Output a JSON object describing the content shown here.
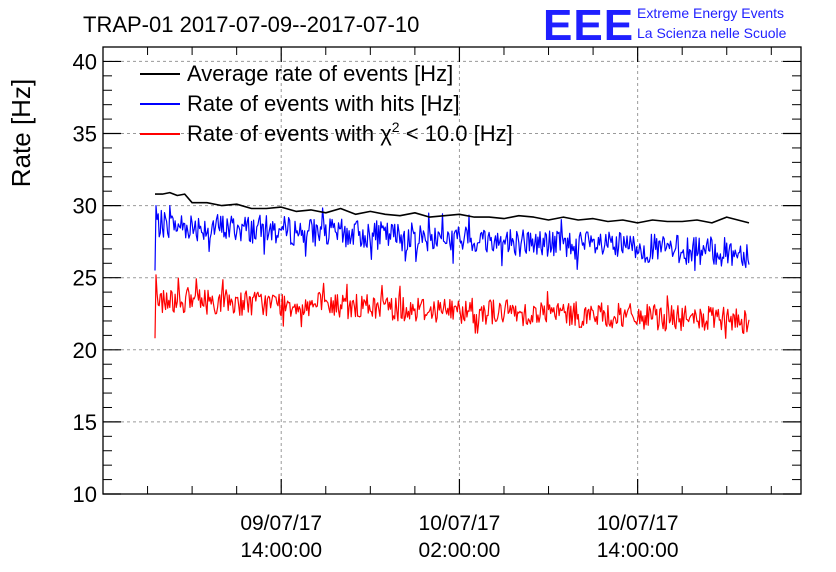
{
  "chart_data": {
    "type": "line",
    "title": "TRAP-01 2017-07-09--2017-07-10",
    "ylabel": "Rate [Hz]",
    "xlabel": "",
    "ylim": [
      10,
      41
    ],
    "yticks": [
      10,
      15,
      20,
      25,
      30,
      35,
      40
    ],
    "x_unit": "hours since 2017-07-09 00:00:00",
    "xlim": [
      2.0,
      49.0
    ],
    "xticks": [
      {
        "x": 14,
        "date": "09/07/17",
        "time": "14:00:00"
      },
      {
        "x": 26,
        "date": "10/07/17",
        "time": "02:00:00"
      },
      {
        "x": 38,
        "date": "10/07/17",
        "time": "14:00:00"
      }
    ],
    "grid": true,
    "legend_position": "top-left",
    "series": [
      {
        "name": "Average rate of events [Hz]",
        "color": "#000000",
        "style": "smooth",
        "x": [
          5.5,
          6.0,
          6.5,
          7.0,
          7.5,
          8.0,
          9.0,
          10.0,
          11.0,
          12.0,
          13.0,
          14.0,
          15.0,
          16.0,
          17.0,
          18.0,
          19.0,
          20.0,
          21.0,
          22.0,
          23.0,
          24.0,
          25.0,
          26.0,
          27.0,
          28.0,
          29.0,
          30.0,
          31.0,
          32.0,
          33.0,
          34.0,
          35.0,
          36.0,
          37.0,
          38.0,
          39.0,
          40.0,
          41.0,
          42.0,
          43.0,
          44.0,
          45.5
        ],
        "values": [
          30.8,
          30.8,
          30.9,
          30.7,
          30.8,
          30.2,
          30.2,
          30.0,
          30.1,
          29.8,
          29.8,
          29.9,
          29.6,
          29.7,
          29.5,
          29.8,
          29.4,
          29.6,
          29.4,
          29.3,
          29.5,
          29.2,
          29.3,
          29.4,
          29.2,
          29.2,
          29.1,
          29.3,
          29.2,
          29.0,
          29.2,
          29.0,
          29.1,
          28.9,
          29.0,
          28.8,
          29.0,
          28.9,
          28.9,
          29.0,
          28.8,
          29.2,
          28.8
        ]
      },
      {
        "name": "Rate of events with hits [Hz]",
        "color": "#0000ff",
        "style": "noisy",
        "x_start": 5.5,
        "x_end": 45.5,
        "start_level": 28.7,
        "end_level": 26.7,
        "amplitude": 1.0,
        "spike_min": 25.5,
        "spike_max": 30.0
      },
      {
        "name": "Rate of events with χ² < 10.0 [Hz]",
        "name_main": "Rate of events with ",
        "name_chi": "χ",
        "name_sup": "2",
        "name_rest": " < 10.0 [Hz]",
        "color": "#ff0000",
        "style": "noisy",
        "x_start": 5.5,
        "x_end": 45.5,
        "start_level": 23.5,
        "end_level": 22.0,
        "amplitude": 0.9,
        "spike_min": 20.8,
        "spike_max": 25.2
      }
    ]
  },
  "logo": {
    "letters": "EEE",
    "line1": "Extreme Energy Events",
    "line2": "La Scienza nelle Scuole",
    "color": "#1f1fff"
  }
}
